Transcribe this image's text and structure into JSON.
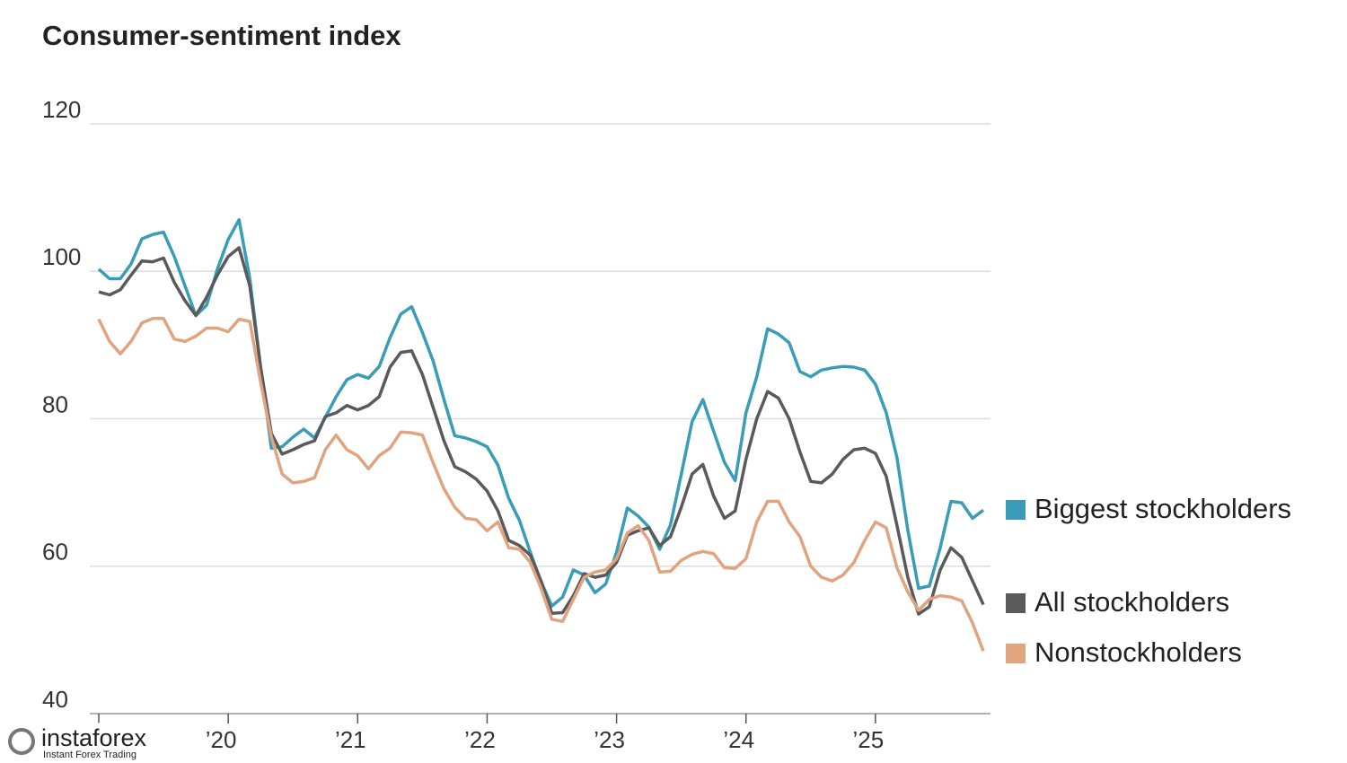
{
  "chart_data": {
    "type": "line",
    "title": "Consumer-sentiment index",
    "x": [
      0,
      1,
      2,
      3,
      4,
      5,
      6,
      7,
      8,
      9,
      10,
      11,
      12,
      13,
      14,
      15,
      16,
      17,
      18,
      19,
      20,
      21,
      22,
      23,
      24,
      25,
      26,
      27,
      28,
      29,
      30,
      31,
      32,
      33,
      34,
      35,
      36,
      37,
      38,
      39,
      40,
      41,
      42,
      43,
      44,
      45,
      46,
      47,
      48,
      49,
      50,
      51,
      52,
      53,
      54,
      55,
      56,
      57,
      58,
      59,
      60,
      61,
      62,
      63,
      64,
      65,
      66,
      67,
      68,
      69,
      70,
      71,
      72,
      73,
      74,
      75,
      76,
      77,
      78,
      79,
      80,
      81,
      82
    ],
    "xlim": [
      0,
      82
    ],
    "xticks": [
      {
        "value": 12,
        "label": "’20"
      },
      {
        "value": 24,
        "label": "’21"
      },
      {
        "value": 36,
        "label": "’22"
      },
      {
        "value": 48,
        "label": "’23"
      },
      {
        "value": 60,
        "label": "’24"
      },
      {
        "value": 72,
        "label": "’25"
      }
    ],
    "ylim": [
      40,
      120
    ],
    "yticks": [
      40,
      60,
      80,
      100,
      120
    ],
    "grid": true,
    "legend": "right",
    "series": [
      {
        "name": "Biggest stockholders",
        "color": "#3a9db7",
        "values": [
          100.3,
          99,
          99,
          101,
          104.4,
          105,
          105.3,
          102,
          98,
          94,
          95.4,
          100.3,
          104.3,
          107,
          99,
          87,
          76,
          76.2,
          77.5,
          78.6,
          77.4,
          80.2,
          83,
          85.3,
          86,
          85.5,
          87.1,
          91,
          94.2,
          95.2,
          91.7,
          87.8,
          82.6,
          77.7,
          77.4,
          76.9,
          76.2,
          73.7,
          69.2,
          66.2,
          61.9,
          57.9,
          54.6,
          55.8,
          59.5,
          58.8,
          56.4,
          57.6,
          61.9,
          67.9,
          66.8,
          65.3,
          62.3,
          65.6,
          72.5,
          79.6,
          82.6,
          78.3,
          74.1,
          71.6,
          80.8,
          85.7,
          92.2,
          91.5,
          90.3,
          86.4,
          85.7,
          86.6,
          86.9,
          87.1,
          87,
          86.6,
          84.7,
          80.8,
          74.7,
          64.9,
          57,
          57.3,
          62.5,
          68.8,
          68.6,
          66.5,
          67.6
        ]
      },
      {
        "name": "All stockholders",
        "color": "#5a5a5c",
        "values": [
          97.2,
          96.8,
          97.5,
          99.5,
          101.4,
          101.3,
          101.8,
          98.5,
          96,
          94,
          96.5,
          99.5,
          102,
          103.2,
          98,
          87,
          78,
          75.2,
          75.8,
          76.5,
          77,
          80.3,
          80.8,
          81.8,
          81.2,
          81.8,
          83,
          87,
          89,
          89.2,
          86,
          81.5,
          77,
          73.5,
          72.8,
          71.8,
          70.2,
          67.5,
          63.5,
          62.8,
          61.5,
          58,
          53.6,
          53.7,
          56,
          59,
          58.5,
          58.8,
          60.5,
          64.2,
          64.8,
          65.2,
          62.8,
          64,
          68,
          72.5,
          73.8,
          69.5,
          66.5,
          67.5,
          74.5,
          80,
          83.7,
          82.8,
          80,
          75.5,
          71.5,
          71.3,
          72.5,
          74.5,
          75.8,
          76,
          75.3,
          72.2,
          65.5,
          58.5,
          53.5,
          54.5,
          59.5,
          62.5,
          61.2,
          58,
          54.8
        ]
      },
      {
        "name": "Nonstockholders",
        "color": "#e0a47f",
        "values": [
          93.5,
          90.5,
          88.8,
          90.5,
          93,
          93.6,
          93.6,
          90.8,
          90.5,
          91.2,
          92.3,
          92.3,
          91.8,
          93.5,
          93.2,
          85,
          77.5,
          72.5,
          71.3,
          71.5,
          72,
          75.8,
          77.8,
          75.8,
          75,
          73.2,
          75,
          76,
          78.2,
          78.1,
          77.8,
          74,
          70.5,
          68,
          66.5,
          66.3,
          64.8,
          66,
          62.5,
          62.3,
          60.5,
          57,
          52.8,
          52.5,
          55.5,
          58.5,
          59.2,
          59.5,
          61,
          64.5,
          65.5,
          63.5,
          59.2,
          59.3,
          60.8,
          61.6,
          62,
          61.7,
          59.8,
          59.7,
          61,
          66,
          68.8,
          68.8,
          66,
          64,
          60,
          58.5,
          58,
          58.8,
          60.5,
          63.5,
          66,
          65.2,
          59.8,
          56.5,
          54,
          55.5,
          56,
          55.8,
          55.3,
          52.3,
          48.5
        ]
      }
    ]
  },
  "watermark": {
    "text": "instaforex",
    "subtext": "Instant Forex Trading"
  }
}
